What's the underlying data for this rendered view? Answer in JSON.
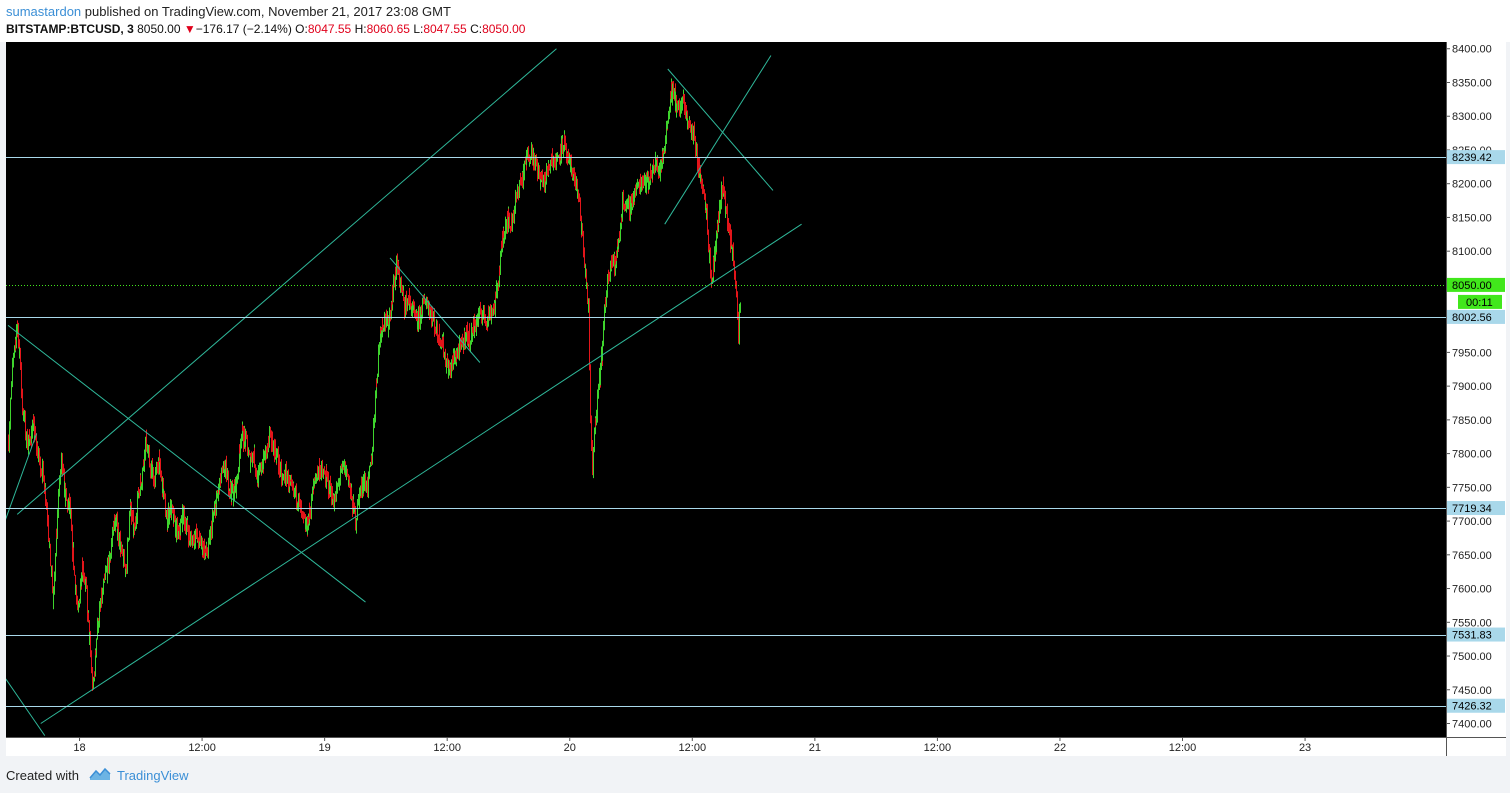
{
  "header": {
    "author": "sumastardon",
    "published_text": "published on TradingView.com, November 21, 2017 23:08 GMT",
    "symbol": "BITSTAMP:BTCUSD, 3",
    "last": "8050.00",
    "change_arrow": "▼",
    "change": "−176.17 (−2.14%)",
    "o_label": "O:",
    "o_value": "8047.55",
    "h_label": "H:",
    "h_value": "8060.65",
    "l_label": "L:",
    "l_value": "8047.55",
    "c_label": "C:",
    "c_value": "8050.00"
  },
  "footer": {
    "created_with": "Created with",
    "brand": "TradingView"
  },
  "colors": {
    "background": "#000000",
    "up": "#3ed42d",
    "down": "#e3151a",
    "trendline": "#2fb89a",
    "hline": "#a9d8ea",
    "price_line": "#41e71b",
    "label_bg": "#a9d8ea"
  },
  "chart_data": {
    "type": "candlestick",
    "symbol": "BITSTAMP:BTCUSD",
    "interval": "3",
    "ylim": [
      7380,
      8410
    ],
    "y_ticks": [
      "7400.00",
      "7450.00",
      "7500.00",
      "7550.00",
      "7600.00",
      "7650.00",
      "7700.00",
      "7750.00",
      "7800.00",
      "7850.00",
      "7900.00",
      "7950.00",
      "8000.00",
      "8050.00",
      "8100.00",
      "8150.00",
      "8200.00",
      "8250.00",
      "8300.00",
      "8350.00",
      "8400.00"
    ],
    "x_ticks": [
      "18",
      "12:00",
      "19",
      "12:00",
      "20",
      "12:00",
      "21",
      "12:00",
      "22",
      "12:00",
      "23"
    ],
    "x_tick_hours": [
      24,
      36,
      48,
      60,
      72,
      84,
      96,
      108,
      120,
      132,
      144
    ],
    "xlim_hours": [
      16.8,
      157.8
    ],
    "price_path": [
      [
        17.0,
        7820
      ],
      [
        17.5,
        7950
      ],
      [
        17.9,
        7990
      ],
      [
        18.4,
        7870
      ],
      [
        18.9,
        7810
      ],
      [
        19.4,
        7840
      ],
      [
        20.0,
        7790
      ],
      [
        20.4,
        7770
      ],
      [
        20.8,
        7720
      ],
      [
        21.4,
        7580
      ],
      [
        21.8,
        7720
      ],
      [
        22.2,
        7790
      ],
      [
        22.6,
        7730
      ],
      [
        23.0,
        7720
      ],
      [
        23.4,
        7640
      ],
      [
        23.8,
        7560
      ],
      [
        24.2,
        7640
      ],
      [
        24.6,
        7600
      ],
      [
        25.0,
        7510
      ],
      [
        25.3,
        7450
      ],
      [
        25.7,
        7540
      ],
      [
        26.1,
        7580
      ],
      [
        26.5,
        7620
      ],
      [
        26.9,
        7640
      ],
      [
        27.3,
        7700
      ],
      [
        27.7,
        7690
      ],
      [
        28.1,
        7650
      ],
      [
        28.5,
        7630
      ],
      [
        28.9,
        7720
      ],
      [
        29.3,
        7680
      ],
      [
        29.7,
        7740
      ],
      [
        30.1,
        7770
      ],
      [
        30.5,
        7820
      ],
      [
        30.9,
        7780
      ],
      [
        31.3,
        7760
      ],
      [
        31.7,
        7790
      ],
      [
        32.1,
        7750
      ],
      [
        32.5,
        7700
      ],
      [
        32.9,
        7720
      ],
      [
        33.3,
        7690
      ],
      [
        33.7,
        7680
      ],
      [
        34.1,
        7710
      ],
      [
        34.5,
        7690
      ],
      [
        34.9,
        7670
      ],
      [
        35.3,
        7680
      ],
      [
        35.7,
        7670
      ],
      [
        36.1,
        7660
      ],
      [
        36.5,
        7650
      ],
      [
        37.0,
        7700
      ],
      [
        37.4,
        7730
      ],
      [
        37.8,
        7760
      ],
      [
        38.2,
        7780
      ],
      [
        38.6,
        7750
      ],
      [
        39.0,
        7740
      ],
      [
        39.4,
        7760
      ],
      [
        39.8,
        7830
      ],
      [
        40.2,
        7820
      ],
      [
        40.6,
        7790
      ],
      [
        41.0,
        7800
      ],
      [
        41.4,
        7760
      ],
      [
        41.8,
        7780
      ],
      [
        42.2,
        7800
      ],
      [
        42.6,
        7820
      ],
      [
        43.0,
        7810
      ],
      [
        43.4,
        7790
      ],
      [
        43.8,
        7760
      ],
      [
        44.2,
        7770
      ],
      [
        44.6,
        7750
      ],
      [
        45.0,
        7740
      ],
      [
        45.4,
        7730
      ],
      [
        45.8,
        7700
      ],
      [
        46.2,
        7690
      ],
      [
        46.6,
        7720
      ],
      [
        47.0,
        7760
      ],
      [
        47.4,
        7780
      ],
      [
        47.8,
        7770
      ],
      [
        48.2,
        7760
      ],
      [
        48.6,
        7740
      ],
      [
        49.0,
        7730
      ],
      [
        49.4,
        7760
      ],
      [
        49.8,
        7780
      ],
      [
        50.2,
        7770
      ],
      [
        50.6,
        7730
      ],
      [
        51.0,
        7700
      ],
      [
        51.4,
        7740
      ],
      [
        51.8,
        7760
      ],
      [
        52.2,
        7750
      ],
      [
        52.6,
        7800
      ],
      [
        53.0,
        7900
      ],
      [
        53.4,
        7980
      ],
      [
        53.8,
        8000
      ],
      [
        54.2,
        7990
      ],
      [
        54.6,
        8040
      ],
      [
        55.0,
        8080
      ],
      [
        55.4,
        8050
      ],
      [
        55.8,
        8020
      ],
      [
        56.2,
        8030
      ],
      [
        56.6,
        8010
      ],
      [
        57.0,
        7990
      ],
      [
        57.4,
        8010
      ],
      [
        57.8,
        8030
      ],
      [
        58.2,
        8020
      ],
      [
        58.6,
        8000
      ],
      [
        59.0,
        7980
      ],
      [
        59.4,
        7970
      ],
      [
        59.8,
        7940
      ],
      [
        60.2,
        7920
      ],
      [
        60.6,
        7940
      ],
      [
        61.0,
        7950
      ],
      [
        61.4,
        7960
      ],
      [
        61.8,
        7980
      ],
      [
        62.2,
        7970
      ],
      [
        62.6,
        7990
      ],
      [
        63.0,
        8000
      ],
      [
        63.4,
        8010
      ],
      [
        63.8,
        8000
      ],
      [
        64.2,
        8010
      ],
      [
        64.6,
        8020
      ],
      [
        65.0,
        8060
      ],
      [
        65.4,
        8120
      ],
      [
        65.8,
        8150
      ],
      [
        66.2,
        8140
      ],
      [
        66.6,
        8170
      ],
      [
        67.0,
        8200
      ],
      [
        67.4,
        8210
      ],
      [
        67.8,
        8240
      ],
      [
        68.2,
        8250
      ],
      [
        68.6,
        8230
      ],
      [
        69.0,
        8210
      ],
      [
        69.4,
        8200
      ],
      [
        69.8,
        8220
      ],
      [
        70.2,
        8240
      ],
      [
        70.6,
        8230
      ],
      [
        71.0,
        8250
      ],
      [
        71.4,
        8260
      ],
      [
        71.8,
        8230
      ],
      [
        72.2,
        8220
      ],
      [
        72.6,
        8200
      ],
      [
        73.0,
        8160
      ],
      [
        73.4,
        8080
      ],
      [
        73.8,
        8010
      ],
      [
        74.0,
        7850
      ],
      [
        74.2,
        7780
      ],
      [
        74.4,
        7830
      ],
      [
        74.8,
        7890
      ],
      [
        75.2,
        7960
      ],
      [
        75.6,
        8050
      ],
      [
        76.0,
        8090
      ],
      [
        76.4,
        8080
      ],
      [
        76.8,
        8120
      ],
      [
        77.2,
        8180
      ],
      [
        77.6,
        8160
      ],
      [
        78.0,
        8170
      ],
      [
        78.4,
        8190
      ],
      [
        78.8,
        8200
      ],
      [
        79.2,
        8210
      ],
      [
        79.6,
        8200
      ],
      [
        80.0,
        8220
      ],
      [
        80.4,
        8230
      ],
      [
        80.8,
        8220
      ],
      [
        81.2,
        8250
      ],
      [
        81.6,
        8300
      ],
      [
        81.9,
        8340
      ],
      [
        82.2,
        8330
      ],
      [
        82.6,
        8310
      ],
      [
        83.0,
        8320
      ],
      [
        83.4,
        8300
      ],
      [
        83.8,
        8280
      ],
      [
        84.2,
        8270
      ],
      [
        84.6,
        8220
      ],
      [
        85.0,
        8200
      ],
      [
        85.4,
        8150
      ],
      [
        85.8,
        8050
      ],
      [
        86.2,
        8100
      ],
      [
        86.6,
        8160
      ],
      [
        87.0,
        8200
      ],
      [
        87.4,
        8140
      ],
      [
        87.8,
        8110
      ],
      [
        88.2,
        8060
      ],
      [
        88.5,
        7960
      ],
      [
        88.7,
        8050
      ]
    ],
    "horizontal_levels": [
      {
        "price": 8239.42,
        "label": "8239.42"
      },
      {
        "price": 8002.56,
        "label": "8002.56"
      },
      {
        "price": 7719.34,
        "label": "7719.34"
      },
      {
        "price": 7531.83,
        "label": "7531.83"
      },
      {
        "price": 7426.32,
        "label": "7426.32"
      }
    ],
    "current_price": {
      "price": 8050.0,
      "label": "8050.00",
      "countdown": "00:11"
    },
    "trendlines": [
      {
        "from": [
          17.0,
          7990
        ],
        "to": [
          52.0,
          7580
        ]
      },
      {
        "from": [
          17.9,
          7710
        ],
        "to": [
          70.7,
          8400
        ]
      },
      {
        "from": [
          20.2,
          7400
        ],
        "to": [
          94.7,
          8140
        ]
      },
      {
        "from": [
          54.4,
          8090
        ],
        "to": [
          63.2,
          7935
        ]
      },
      {
        "from": [
          16.7,
          7700
        ],
        "to": [
          19.8,
          7830
        ]
      },
      {
        "from": [
          16.6,
          7470
        ],
        "to": [
          20.6,
          7382
        ]
      },
      {
        "from": [
          81.3,
          8140
        ],
        "to": [
          91.7,
          8390
        ]
      },
      {
        "from": [
          81.6,
          8370
        ],
        "to": [
          91.9,
          8190
        ]
      }
    ]
  }
}
